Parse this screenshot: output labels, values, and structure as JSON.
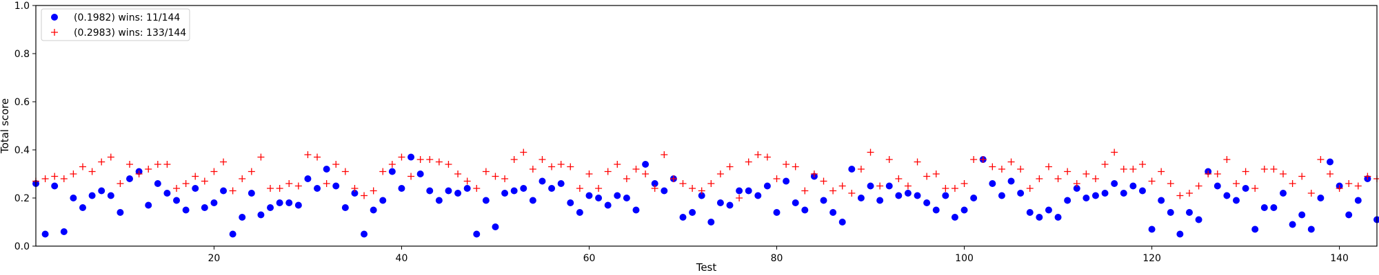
{
  "chart_data": {
    "type": "scatter",
    "xlabel": "Test",
    "ylabel": "Total score",
    "xlim": [
      1,
      144
    ],
    "ylim": [
      0.0,
      1.0
    ],
    "x_ticks": [
      20,
      40,
      60,
      80,
      100,
      120,
      140
    ],
    "x_tick_labels": [
      "20",
      "40",
      "60",
      "80",
      "100",
      "120",
      "140"
    ],
    "y_ticks": [
      0.0,
      0.2,
      0.4,
      0.6,
      0.8,
      1.0
    ],
    "y_tick_labels": [
      "0.0",
      "0.2",
      "0.4",
      "0.6",
      "0.8",
      "1.0"
    ],
    "grid": false,
    "legend_position": "top-left",
    "series": [
      {
        "name": "(0.1982) wins: 11/144",
        "marker": "circle",
        "color": "#0000ff",
        "x": [
          1,
          2,
          3,
          4,
          5,
          6,
          7,
          8,
          9,
          10,
          11,
          12,
          13,
          14,
          15,
          16,
          17,
          18,
          19,
          20,
          21,
          22,
          23,
          24,
          25,
          26,
          27,
          28,
          29,
          30,
          31,
          32,
          33,
          34,
          35,
          36,
          37,
          38,
          39,
          40,
          41,
          42,
          43,
          44,
          45,
          46,
          47,
          48,
          49,
          50,
          51,
          52,
          53,
          54,
          55,
          56,
          57,
          58,
          59,
          60,
          61,
          62,
          63,
          64,
          65,
          66,
          67,
          68,
          69,
          70,
          71,
          72,
          73,
          74,
          75,
          76,
          77,
          78,
          79,
          80,
          81,
          82,
          83,
          84,
          85,
          86,
          87,
          88,
          89,
          90,
          91,
          92,
          93,
          94,
          95,
          96,
          97,
          98,
          99,
          100,
          101,
          102,
          103,
          104,
          105,
          106,
          107,
          108,
          109,
          110,
          111,
          112,
          113,
          114,
          115,
          116,
          117,
          118,
          119,
          120,
          121,
          122,
          123,
          124,
          125,
          126,
          127,
          128,
          129,
          130,
          131,
          132,
          133,
          134,
          135,
          136,
          137,
          138,
          139,
          140,
          141,
          142,
          143,
          144
        ],
        "y": [
          0.26,
          0.05,
          0.25,
          0.06,
          0.2,
          0.16,
          0.21,
          0.23,
          0.21,
          0.14,
          0.28,
          0.31,
          0.17,
          0.26,
          0.22,
          0.19,
          0.15,
          0.24,
          0.16,
          0.18,
          0.23,
          0.05,
          0.12,
          0.22,
          0.13,
          0.16,
          0.18,
          0.18,
          0.17,
          0.28,
          0.24,
          0.32,
          0.25,
          0.16,
          0.22,
          0.05,
          0.15,
          0.19,
          0.31,
          0.24,
          0.37,
          0.3,
          0.23,
          0.19,
          0.23,
          0.22,
          0.24,
          0.05,
          0.19,
          0.08,
          0.22,
          0.23,
          0.24,
          0.19,
          0.27,
          0.24,
          0.26,
          0.18,
          0.14,
          0.21,
          0.2,
          0.17,
          0.21,
          0.2,
          0.15,
          0.34,
          0.26,
          0.23,
          0.28,
          0.12,
          0.14,
          0.21,
          0.1,
          0.18,
          0.17,
          0.23,
          0.23,
          0.21,
          0.25,
          0.14,
          0.27,
          0.18,
          0.15,
          0.29,
          0.19,
          0.14,
          0.1,
          0.32,
          0.2,
          0.25,
          0.19,
          0.25,
          0.21,
          0.22,
          0.21,
          0.18,
          0.15,
          0.21,
          0.12,
          0.15,
          0.2,
          0.36,
          0.26,
          0.21,
          0.27,
          0.22,
          0.14,
          0.12,
          0.15,
          0.12,
          0.19,
          0.24,
          0.2,
          0.21,
          0.22,
          0.26,
          0.22,
          0.25,
          0.23,
          0.07,
          0.19,
          0.14,
          0.05,
          0.14,
          0.11,
          0.31,
          0.25,
          0.21,
          0.19,
          0.24,
          0.07,
          0.16,
          0.16,
          0.22,
          0.09,
          0.13,
          0.07,
          0.2,
          0.35,
          0.25,
          0.13,
          0.19,
          0.28,
          0.11
        ]
      },
      {
        "name": "(0.2983) wins: 133/144",
        "marker": "plus",
        "color": "#ff0000",
        "x": [
          1,
          2,
          3,
          4,
          5,
          6,
          7,
          8,
          9,
          10,
          11,
          12,
          13,
          14,
          15,
          16,
          17,
          18,
          19,
          20,
          21,
          22,
          23,
          24,
          25,
          26,
          27,
          28,
          29,
          30,
          31,
          32,
          33,
          34,
          35,
          36,
          37,
          38,
          39,
          40,
          41,
          42,
          43,
          44,
          45,
          46,
          47,
          48,
          49,
          50,
          51,
          52,
          53,
          54,
          55,
          56,
          57,
          58,
          59,
          60,
          61,
          62,
          63,
          64,
          65,
          66,
          67,
          68,
          69,
          70,
          71,
          72,
          73,
          74,
          75,
          76,
          77,
          78,
          79,
          80,
          81,
          82,
          83,
          84,
          85,
          86,
          87,
          88,
          89,
          90,
          91,
          92,
          93,
          94,
          95,
          96,
          97,
          98,
          99,
          100,
          101,
          102,
          103,
          104,
          105,
          106,
          107,
          108,
          109,
          110,
          111,
          112,
          113,
          114,
          115,
          116,
          117,
          118,
          119,
          120,
          121,
          122,
          123,
          124,
          125,
          126,
          127,
          128,
          129,
          130,
          131,
          132,
          133,
          134,
          135,
          136,
          137,
          138,
          139,
          140,
          141,
          142,
          143,
          144
        ],
        "y": [
          0.27,
          0.28,
          0.29,
          0.28,
          0.3,
          0.33,
          0.31,
          0.35,
          0.37,
          0.26,
          0.34,
          0.3,
          0.32,
          0.34,
          0.34,
          0.24,
          0.26,
          0.29,
          0.27,
          0.31,
          0.35,
          0.23,
          0.28,
          0.31,
          0.37,
          0.24,
          0.24,
          0.26,
          0.25,
          0.38,
          0.37,
          0.26,
          0.34,
          0.31,
          0.24,
          0.21,
          0.23,
          0.31,
          0.34,
          0.37,
          0.29,
          0.36,
          0.36,
          0.35,
          0.34,
          0.3,
          0.27,
          0.24,
          0.31,
          0.29,
          0.28,
          0.36,
          0.39,
          0.32,
          0.36,
          0.33,
          0.34,
          0.33,
          0.24,
          0.3,
          0.24,
          0.31,
          0.34,
          0.28,
          0.32,
          0.3,
          0.24,
          0.38,
          0.28,
          0.26,
          0.24,
          0.23,
          0.26,
          0.3,
          0.33,
          0.2,
          0.35,
          0.38,
          0.37,
          0.28,
          0.34,
          0.33,
          0.23,
          0.3,
          0.27,
          0.23,
          0.25,
          0.22,
          0.32,
          0.39,
          0.25,
          0.36,
          0.28,
          0.25,
          0.35,
          0.29,
          0.3,
          0.24,
          0.24,
          0.26,
          0.36,
          0.36,
          0.33,
          0.32,
          0.35,
          0.32,
          0.24,
          0.28,
          0.33,
          0.28,
          0.31,
          0.26,
          0.3,
          0.28,
          0.34,
          0.39,
          0.32,
          0.32,
          0.34,
          0.27,
          0.31,
          0.26,
          0.21,
          0.22,
          0.25,
          0.3,
          0.3,
          0.36,
          0.26,
          0.31,
          0.24,
          0.32,
          0.32,
          0.3,
          0.26,
          0.29,
          0.22,
          0.36,
          0.3,
          0.24,
          0.26,
          0.25,
          0.29,
          0.28
        ]
      }
    ]
  }
}
